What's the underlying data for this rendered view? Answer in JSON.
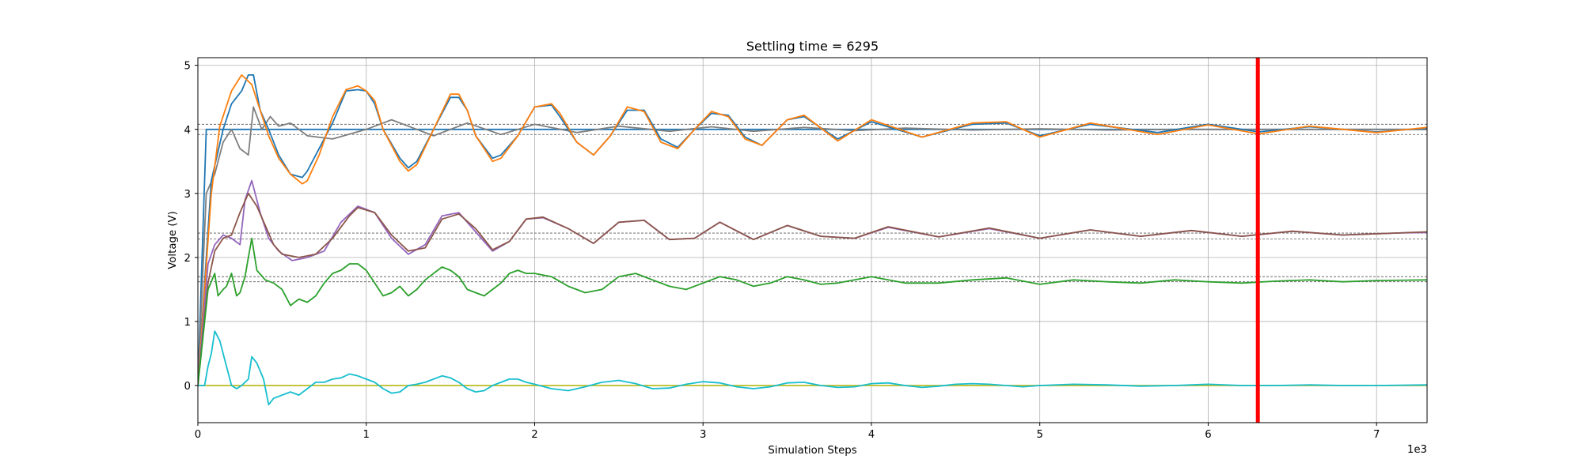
{
  "chart_data": {
    "type": "line",
    "title": "Settling time = 6295",
    "xlabel": "Simulation Steps",
    "ylabel": "Voltage (V)",
    "x_offset_label": "1e3",
    "xlim": [
      0,
      7300
    ],
    "ylim": [
      -0.58,
      5.12
    ],
    "x_ticks": [
      0,
      1000,
      2000,
      3000,
      4000,
      5000,
      6000,
      7000
    ],
    "x_tick_labels": [
      "0",
      "1",
      "2",
      "3",
      "4",
      "5",
      "6",
      "7"
    ],
    "y_ticks": [
      0,
      1,
      2,
      3,
      4,
      5
    ],
    "y_tick_labels": [
      "0",
      "1",
      "2",
      "3",
      "4",
      "5"
    ],
    "grid": true,
    "legend": "none",
    "settling_line": {
      "x": 6295,
      "color": "#ff0000"
    },
    "reference_bands": [
      {
        "center": 4.0,
        "lower": 3.92,
        "upper": 4.08
      },
      {
        "center": 2.33,
        "lower": 2.29,
        "upper": 2.38
      },
      {
        "center": 1.65,
        "lower": 1.62,
        "upper": 1.7
      }
    ],
    "series": [
      {
        "color": "#bcbd22",
        "x": [
          0,
          7300
        ],
        "y": [
          0.0,
          0.0
        ]
      },
      {
        "color": "#1f77b4",
        "x": [
          0,
          50,
          7300
        ],
        "y": [
          0.0,
          4.0,
          4.0
        ]
      },
      {
        "color": "#7f7f7f",
        "x": [
          0,
          50,
          100,
          150,
          200,
          250,
          300,
          330,
          380,
          430,
          480,
          550,
          650,
          800,
          1000,
          1150,
          1400,
          1600,
          1800,
          2000,
          2250,
          2500,
          2800,
          3050,
          3300,
          3600,
          3900,
          4200,
          4600,
          5000,
          5400,
          5800,
          6200,
          6600,
          7000,
          7300
        ],
        "y": [
          0.0,
          3.0,
          3.3,
          3.8,
          4.0,
          3.7,
          3.6,
          4.35,
          4.0,
          4.2,
          4.05,
          4.1,
          3.9,
          3.85,
          4.0,
          4.15,
          3.9,
          4.1,
          3.92,
          4.08,
          3.95,
          4.05,
          3.97,
          4.04,
          3.97,
          4.03,
          3.98,
          4.02,
          3.99,
          4.01,
          3.99,
          4.0,
          4.0,
          4.0,
          4.0,
          4.0
        ]
      },
      {
        "color": "#1f77b4",
        "x": [
          0,
          80,
          150,
          200,
          260,
          300,
          330,
          370,
          420,
          480,
          550,
          620,
          650,
          720,
          800,
          880,
          950,
          1000,
          1050,
          1100,
          1200,
          1250,
          1300,
          1400,
          1500,
          1550,
          1600,
          1650,
          1750,
          1800,
          1900,
          2000,
          2100,
          2150,
          2250,
          2350,
          2450,
          2550,
          2650,
          2750,
          2850,
          2950,
          3050,
          3150,
          3250,
          3350,
          3500,
          3600,
          3800,
          4000,
          4300,
          4600,
          4800,
          5000,
          5300,
          5700,
          6000,
          6300,
          6600,
          7000,
          7300
        ],
        "y": [
          0.0,
          3.2,
          4.0,
          4.4,
          4.6,
          4.85,
          4.85,
          4.3,
          4.0,
          3.6,
          3.3,
          3.25,
          3.35,
          3.7,
          4.1,
          4.6,
          4.62,
          4.6,
          4.4,
          4.0,
          3.55,
          3.4,
          3.5,
          4.0,
          4.5,
          4.5,
          4.3,
          3.9,
          3.55,
          3.6,
          3.9,
          4.35,
          4.38,
          4.2,
          3.8,
          3.6,
          3.9,
          4.3,
          4.3,
          3.85,
          3.72,
          4.0,
          4.25,
          4.22,
          3.88,
          3.75,
          4.15,
          4.2,
          3.85,
          4.12,
          3.88,
          4.08,
          4.1,
          3.9,
          4.08,
          3.95,
          4.08,
          3.96,
          4.04,
          3.96,
          4.02
        ]
      },
      {
        "color": "#ff7f0e",
        "x": [
          0,
          80,
          130,
          200,
          260,
          320,
          370,
          420,
          480,
          550,
          620,
          650,
          720,
          800,
          880,
          950,
          1000,
          1050,
          1100,
          1200,
          1250,
          1300,
          1400,
          1500,
          1550,
          1600,
          1650,
          1750,
          1800,
          1900,
          2000,
          2100,
          2150,
          2250,
          2350,
          2450,
          2550,
          2650,
          2750,
          2850,
          2950,
          3050,
          3150,
          3250,
          3350,
          3500,
          3600,
          3800,
          4000,
          4300,
          4600,
          4800,
          5000,
          5300,
          5700,
          6000,
          6300,
          6600,
          7000,
          7300
        ],
        "y": [
          0.0,
          3.0,
          4.05,
          4.6,
          4.85,
          4.7,
          4.3,
          3.9,
          3.55,
          3.3,
          3.15,
          3.2,
          3.6,
          4.2,
          4.62,
          4.68,
          4.6,
          4.45,
          4.0,
          3.5,
          3.35,
          3.45,
          4.0,
          4.55,
          4.55,
          4.3,
          3.9,
          3.5,
          3.55,
          3.9,
          4.35,
          4.4,
          4.25,
          3.8,
          3.6,
          3.9,
          4.35,
          4.28,
          3.8,
          3.7,
          4.0,
          4.28,
          4.2,
          3.85,
          3.75,
          4.15,
          4.22,
          3.82,
          4.15,
          3.88,
          4.1,
          4.12,
          3.88,
          4.1,
          3.92,
          4.07,
          3.93,
          4.05,
          3.95,
          4.03
        ]
      },
      {
        "color": "#9467bd",
        "x": [
          0,
          60,
          100,
          150,
          200,
          250,
          280,
          320,
          370,
          420,
          480,
          560,
          650,
          750,
          850,
          950,
          1050,
          1150,
          1250,
          1350,
          1450,
          1550,
          1650,
          1750,
          1850,
          1950,
          2050,
          2200,
          2350,
          2500,
          2650,
          2800,
          2950,
          3100,
          3300,
          3500,
          3700,
          3900,
          4100,
          4400,
          4700,
          5000,
          5300,
          5600,
          5900,
          6200,
          6500,
          6800,
          7100,
          7300
        ],
        "y": [
          0.0,
          1.9,
          2.2,
          2.35,
          2.3,
          2.2,
          2.9,
          3.2,
          2.7,
          2.3,
          2.1,
          1.95,
          2.0,
          2.1,
          2.55,
          2.8,
          2.7,
          2.3,
          2.05,
          2.2,
          2.65,
          2.7,
          2.4,
          2.1,
          2.25,
          2.6,
          2.62,
          2.45,
          2.22,
          2.55,
          2.58,
          2.28,
          2.3,
          2.55,
          2.28,
          2.5,
          2.33,
          2.3,
          2.47,
          2.32,
          2.45,
          2.3,
          2.43,
          2.33,
          2.42,
          2.33,
          2.41,
          2.35,
          2.38,
          2.39
        ]
      },
      {
        "color": "#8c564b",
        "x": [
          0,
          60,
          100,
          150,
          200,
          250,
          300,
          350,
          400,
          450,
          500,
          600,
          700,
          800,
          900,
          950,
          1050,
          1150,
          1250,
          1350,
          1450,
          1550,
          1650,
          1750,
          1850,
          1950,
          2050,
          2200,
          2350,
          2500,
          2650,
          2800,
          2950,
          3100,
          3300,
          3500,
          3700,
          3900,
          4100,
          4400,
          4700,
          5000,
          5300,
          5600,
          5900,
          6200,
          6500,
          6800,
          7100,
          7300
        ],
        "y": [
          0.0,
          1.6,
          2.1,
          2.3,
          2.35,
          2.7,
          3.0,
          2.8,
          2.5,
          2.2,
          2.05,
          2.0,
          2.05,
          2.3,
          2.65,
          2.78,
          2.7,
          2.35,
          2.1,
          2.15,
          2.6,
          2.68,
          2.45,
          2.12,
          2.25,
          2.6,
          2.63,
          2.45,
          2.22,
          2.55,
          2.58,
          2.28,
          2.3,
          2.55,
          2.28,
          2.5,
          2.33,
          2.3,
          2.48,
          2.32,
          2.46,
          2.3,
          2.43,
          2.33,
          2.42,
          2.33,
          2.41,
          2.35,
          2.38,
          2.4
        ]
      },
      {
        "color": "#2ca02c",
        "x": [
          0,
          60,
          100,
          120,
          150,
          170,
          200,
          230,
          250,
          280,
          300,
          320,
          350,
          400,
          450,
          500,
          550,
          600,
          650,
          700,
          750,
          800,
          850,
          900,
          950,
          1000,
          1050,
          1100,
          1150,
          1200,
          1250,
          1300,
          1350,
          1400,
          1450,
          1500,
          1550,
          1600,
          1650,
          1700,
          1750,
          1800,
          1850,
          1900,
          1950,
          2000,
          2100,
          2200,
          2300,
          2400,
          2500,
          2600,
          2700,
          2800,
          2900,
          3000,
          3100,
          3200,
          3300,
          3400,
          3500,
          3600,
          3700,
          3800,
          3900,
          4000,
          4200,
          4400,
          4600,
          4800,
          5000,
          5200,
          5400,
          5600,
          5800,
          6000,
          6200,
          6400,
          6600,
          6800,
          7000,
          7300
        ],
        "y": [
          0.0,
          1.5,
          1.75,
          1.4,
          1.5,
          1.55,
          1.75,
          1.4,
          1.45,
          1.7,
          2.0,
          2.3,
          1.8,
          1.65,
          1.6,
          1.5,
          1.25,
          1.35,
          1.3,
          1.4,
          1.6,
          1.75,
          1.8,
          1.9,
          1.9,
          1.8,
          1.6,
          1.4,
          1.45,
          1.55,
          1.4,
          1.5,
          1.65,
          1.75,
          1.85,
          1.8,
          1.7,
          1.5,
          1.45,
          1.4,
          1.5,
          1.6,
          1.75,
          1.8,
          1.75,
          1.75,
          1.7,
          1.55,
          1.45,
          1.5,
          1.7,
          1.75,
          1.65,
          1.55,
          1.5,
          1.6,
          1.7,
          1.65,
          1.55,
          1.6,
          1.7,
          1.65,
          1.58,
          1.6,
          1.65,
          1.7,
          1.6,
          1.6,
          1.65,
          1.68,
          1.58,
          1.65,
          1.62,
          1.6,
          1.65,
          1.62,
          1.6,
          1.63,
          1.65,
          1.62,
          1.64,
          1.65
        ]
      },
      {
        "color": "#17becf",
        "x": [
          0,
          40,
          60,
          80,
          100,
          130,
          160,
          180,
          200,
          230,
          260,
          300,
          320,
          350,
          390,
          420,
          450,
          500,
          550,
          600,
          650,
          700,
          750,
          800,
          850,
          900,
          950,
          1000,
          1050,
          1100,
          1150,
          1200,
          1250,
          1300,
          1350,
          1400,
          1450,
          1500,
          1550,
          1600,
          1650,
          1700,
          1750,
          1800,
          1850,
          1900,
          1950,
          2000,
          2100,
          2200,
          2300,
          2400,
          2500,
          2600,
          2700,
          2800,
          2900,
          3000,
          3100,
          3200,
          3300,
          3400,
          3500,
          3600,
          3700,
          3800,
          3900,
          4000,
          4100,
          4200,
          4300,
          4400,
          4500,
          4600,
          4700,
          4800,
          4900,
          5000,
          5200,
          5400,
          5600,
          5800,
          6000,
          6200,
          6400,
          6600,
          6800,
          7000,
          7300
        ],
        "y": [
          0.0,
          0.0,
          0.3,
          0.5,
          0.85,
          0.7,
          0.4,
          0.2,
          0.0,
          -0.05,
          0.0,
          0.1,
          0.45,
          0.35,
          0.1,
          -0.3,
          -0.2,
          -0.15,
          -0.1,
          -0.15,
          -0.05,
          0.05,
          0.05,
          0.1,
          0.12,
          0.18,
          0.15,
          0.1,
          0.05,
          -0.05,
          -0.12,
          -0.1,
          0.0,
          0.02,
          0.05,
          0.1,
          0.15,
          0.12,
          0.05,
          -0.05,
          -0.1,
          -0.08,
          0.0,
          0.05,
          0.1,
          0.1,
          0.05,
          0.02,
          -0.05,
          -0.08,
          -0.02,
          0.05,
          0.08,
          0.03,
          -0.05,
          -0.04,
          0.02,
          0.06,
          0.04,
          -0.02,
          -0.05,
          -0.02,
          0.04,
          0.05,
          0.0,
          -0.03,
          -0.02,
          0.03,
          0.04,
          0.0,
          -0.03,
          -0.01,
          0.02,
          0.03,
          0.02,
          0.0,
          -0.02,
          0.0,
          0.02,
          0.01,
          -0.01,
          0.0,
          0.02,
          0.0,
          0.0,
          0.01,
          0.0,
          0.0,
          0.01
        ]
      }
    ]
  }
}
